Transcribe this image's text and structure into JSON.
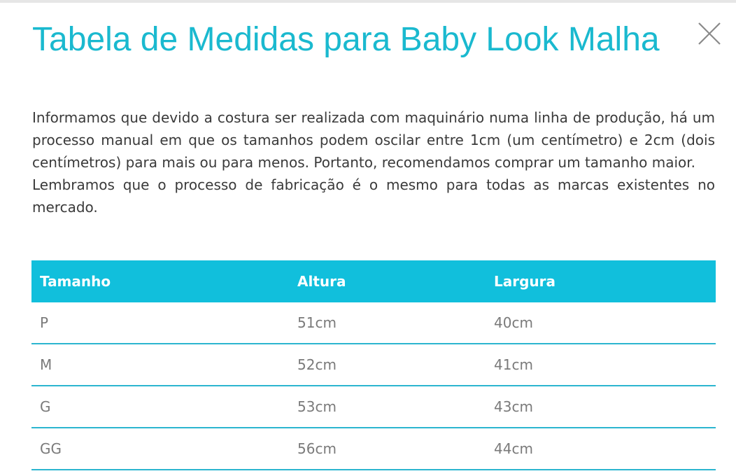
{
  "modal": {
    "title": "Tabela de Medidas para Baby Look Malha",
    "description": [
      "Informamos que devido a costura ser realizada com maquinário numa linha de produção, há um processo manual em que os tamanhos podem oscilar entre 1cm (um centímetro) e 2cm (dois centímetros) para mais ou para menos. Portanto, recomendamos comprar um tamanho maior.",
      "Lembramos que o processo de fabricação é o mesmo para todas as marcas existentes no mercado."
    ],
    "close_icon": "close-icon"
  },
  "table": {
    "headers": [
      "Tamanho",
      "Altura",
      "Largura"
    ],
    "rows": [
      [
        "P",
        "51cm",
        "40cm"
      ],
      [
        "M",
        "52cm",
        "41cm"
      ],
      [
        "G",
        "53cm",
        "43cm"
      ],
      [
        "GG",
        "56cm",
        "44cm"
      ]
    ]
  },
  "colors": {
    "accent": "#11bfdc",
    "title": "#1ab9cf",
    "body_text": "#3a3a3a",
    "cell_text": "#7a7a7a"
  }
}
